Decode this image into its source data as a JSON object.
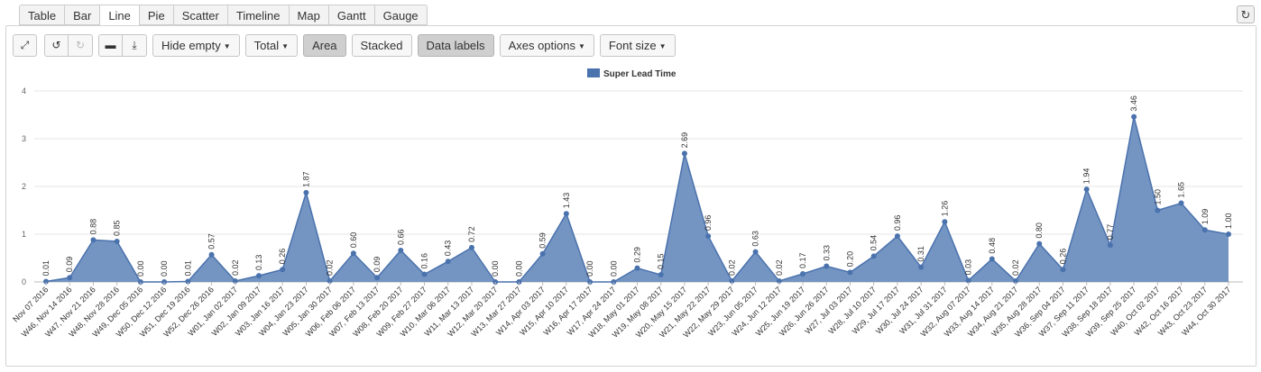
{
  "tabs": [
    {
      "label": "Table",
      "active": false
    },
    {
      "label": "Bar",
      "active": false
    },
    {
      "label": "Line",
      "active": true
    },
    {
      "label": "Pie",
      "active": false
    },
    {
      "label": "Scatter",
      "active": false
    },
    {
      "label": "Timeline",
      "active": false
    },
    {
      "label": "Map",
      "active": false
    },
    {
      "label": "Gantt",
      "active": false
    },
    {
      "label": "Gauge",
      "active": false
    }
  ],
  "toolbar": {
    "hide_empty": "Hide empty",
    "total": "Total",
    "area": "Area",
    "stacked": "Stacked",
    "data_labels": "Data labels",
    "axes_options": "Axes options",
    "font_size": "Font size"
  },
  "icons": {
    "fullscreen": "expand-icon",
    "undo": "undo-icon",
    "redo": "redo-icon",
    "comment": "comment-icon",
    "download": "download-icon",
    "refresh": "refresh-icon"
  },
  "colors": {
    "series": "#4a72ad",
    "area_fill": "#6d8fbf",
    "grid": "#e6e6e6"
  },
  "chart_data": {
    "type": "area",
    "title": "",
    "xlabel": "",
    "ylabel": "",
    "ylim": [
      0,
      4
    ],
    "yticks": [
      "0",
      "1",
      "2",
      "3",
      "4"
    ],
    "grid": true,
    "legend_placement": "top-center",
    "data_labels": true,
    "categories": [
      "Nov 07 2016",
      "W46, Nov 14 2016",
      "W47, Nov 21 2016",
      "W48, Nov 28 2016",
      "W49, Dec 05 2016",
      "W50, Dec 12 2016",
      "W51, Dec 19 2016",
      "W52, Dec 26 2016",
      "W01, Jan 02 2017",
      "W02, Jan 09 2017",
      "W03, Jan 16 2017",
      "W04, Jan 23 2017",
      "W05, Jan 30 2017",
      "W06, Feb 06 2017",
      "W07, Feb 13 2017",
      "W08, Feb 20 2017",
      "W09, Feb 27 2017",
      "W10, Mar 06 2017",
      "W11, Mar 13 2017",
      "W12, Mar 20 2017",
      "W13, Mar 27 2017",
      "W14, Apr 03 2017",
      "W15, Apr 10 2017",
      "W16, Apr 17 2017",
      "W17, Apr 24 2017",
      "W18, May 01 2017",
      "W19, May 08 2017",
      "W20, May 15 2017",
      "W21, May 22 2017",
      "W22, May 29 2017",
      "W23, Jun 05 2017",
      "W24, Jun 12 2017",
      "W25, Jun 19 2017",
      "W26, Jun 26 2017",
      "W27, Jul 03 2017",
      "W28, Jul 10 2017",
      "W29, Jul 17 2017",
      "W30, Jul 24 2017",
      "W31, Jul 31 2017",
      "W32, Aug 07 2017",
      "W33, Aug 14 2017",
      "W34, Aug 21 2017",
      "W35, Aug 28 2017",
      "W36, Sep 04 2017",
      "W37, Sep 11 2017",
      "W38, Sep 18 2017",
      "W39, Sep 25 2017",
      "W40, Oct 02 2017",
      "W42, Oct 16 2017",
      "W43, Oct 23 2017",
      "W44, Oct 30 2017"
    ],
    "series": [
      {
        "name": "Super Lead Time",
        "values": [
          0.01,
          0.09,
          0.88,
          0.85,
          0.0,
          0.0,
          0.01,
          0.57,
          0.02,
          0.13,
          0.26,
          1.87,
          0.02,
          0.6,
          0.09,
          0.66,
          0.16,
          0.43,
          0.72,
          0.0,
          0.0,
          0.59,
          1.43,
          0.0,
          0.0,
          0.29,
          0.15,
          2.69,
          0.96,
          0.02,
          0.63,
          0.02,
          0.17,
          0.33,
          0.2,
          0.54,
          0.96,
          0.31,
          1.26,
          0.03,
          0.48,
          0.02,
          0.8,
          0.26,
          1.94,
          0.77,
          3.46,
          1.5,
          1.65,
          1.09,
          1.0
        ],
        "labels": [
          "0.01",
          "0.09",
          "0.88",
          "0.85",
          "0.00",
          "0.00",
          "0.01",
          "0.57",
          "0.02",
          "0.13",
          "0.26",
          "1.87",
          "0.02",
          "0.60",
          "0.09",
          "0.66",
          "0.16",
          "0.43",
          "0.72",
          "0.00",
          "0.00",
          "0.59",
          "1.43",
          "0.00",
          "0.00",
          "0.29",
          "0.15",
          "2.69",
          "0.96",
          "0.02",
          "0.63",
          "0.02",
          "0.17",
          "0.33",
          "0.20",
          "0.54",
          "0.96",
          "0.31",
          "1.26",
          "0.03",
          "0.48",
          "0.02",
          "0.80",
          "0.26",
          "1.94",
          "0.77",
          "3.46",
          "1.50",
          "1.65",
          "1.09",
          "1.00"
        ]
      }
    ]
  }
}
